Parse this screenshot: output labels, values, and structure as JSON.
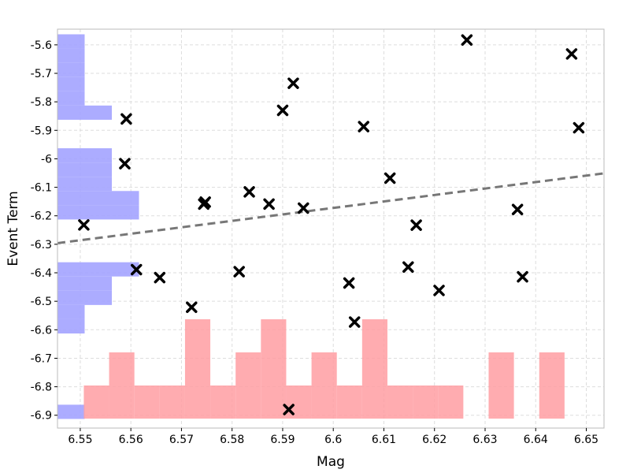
{
  "chart_data": {
    "type": "scatter",
    "title": "",
    "xlabel": "Mag",
    "ylabel": "Event Term",
    "xlim": [
      6.5455,
      6.6535
    ],
    "ylim": [
      -6.945,
      -5.545
    ],
    "x_ticks": [
      6.55,
      6.56,
      6.57,
      6.58,
      6.59,
      6.6,
      6.61,
      6.62,
      6.63,
      6.64,
      6.65
    ],
    "x_tick_labels": [
      "6.55",
      "6.56",
      "6.57",
      "6.58",
      "6.59",
      "6.6",
      "6.61",
      "6.62",
      "6.63",
      "6.64",
      "6.65"
    ],
    "y_ticks": [
      -5.6,
      -5.7,
      -5.8,
      -5.9,
      -6.0,
      -6.1,
      -6.2,
      -6.3,
      -6.4,
      -6.5,
      -6.6,
      -6.7,
      -6.8,
      -6.9
    ],
    "y_tick_labels": [
      "-5.6",
      "-5.7",
      "-5.8",
      "-5.9",
      "-6",
      "-6.1",
      "-6.2",
      "-6.3",
      "-6.4",
      "-6.5",
      "-6.6",
      "-6.7",
      "-6.8",
      "-6.9"
    ],
    "grid": true,
    "marker_color": "#000000",
    "points": [
      {
        "x": 6.5507,
        "y": -6.232
      },
      {
        "x": 6.5591,
        "y": -5.86
      },
      {
        "x": 6.5588,
        "y": -6.017
      },
      {
        "x": 6.5611,
        "y": -6.389
      },
      {
        "x": 6.5657,
        "y": -6.417
      },
      {
        "x": 6.572,
        "y": -6.521
      },
      {
        "x": 6.5744,
        "y": -6.159
      },
      {
        "x": 6.5747,
        "y": -6.152
      },
      {
        "x": 6.5814,
        "y": -6.396
      },
      {
        "x": 6.5834,
        "y": -6.116
      },
      {
        "x": 6.5873,
        "y": -6.159
      },
      {
        "x": 6.59,
        "y": -5.83
      },
      {
        "x": 6.5921,
        "y": -5.735
      },
      {
        "x": 6.5941,
        "y": -6.173
      },
      {
        "x": 6.5912,
        "y": -6.88
      },
      {
        "x": 6.6031,
        "y": -6.436
      },
      {
        "x": 6.6042,
        "y": -6.573
      },
      {
        "x": 6.606,
        "y": -5.887
      },
      {
        "x": 6.6112,
        "y": -6.068
      },
      {
        "x": 6.6148,
        "y": -6.38
      },
      {
        "x": 6.6164,
        "y": -6.233
      },
      {
        "x": 6.6209,
        "y": -6.462
      },
      {
        "x": 6.6264,
        "y": -5.583
      },
      {
        "x": 6.6364,
        "y": -6.178
      },
      {
        "x": 6.6374,
        "y": -6.414
      },
      {
        "x": 6.6471,
        "y": -5.632
      },
      {
        "x": 6.6485,
        "y": -5.891
      }
    ],
    "trend_line": {
      "x": [
        6.5455,
        6.6535
      ],
      "y": [
        -6.296,
        -6.051
      ],
      "color": "#777777",
      "style": "dashed"
    },
    "x_histogram": {
      "color": "#ff9da2",
      "bin_edges": [
        6.5507,
        6.5557,
        6.5607,
        6.5657,
        6.5707,
        6.5757,
        6.5807,
        6.5857,
        6.5907,
        6.5957,
        6.6007,
        6.6057,
        6.6107,
        6.6157,
        6.6207,
        6.6257,
        6.6307,
        6.6357,
        6.6407,
        6.6457,
        6.6507
      ],
      "counts": [
        1,
        2,
        1,
        1,
        3,
        1,
        2,
        3,
        1,
        2,
        1,
        3,
        1,
        1,
        1,
        0,
        2,
        0,
        2,
        0
      ]
    },
    "y_histogram": {
      "color": "#a3a3ff",
      "bin_edges": [
        -6.913,
        -6.863,
        -6.813,
        -6.763,
        -6.713,
        -6.663,
        -6.613,
        -6.563,
        -6.513,
        -6.463,
        -6.413,
        -6.363,
        -6.313,
        -6.263,
        -6.213,
        -6.163,
        -6.113,
        -6.063,
        -6.013,
        -5.963,
        -5.913,
        -5.863,
        -5.813,
        -5.763,
        -5.713,
        -5.663,
        -5.613,
        -5.563
      ],
      "counts": [
        1,
        0,
        0,
        0,
        0,
        0,
        1,
        1,
        2,
        2,
        3,
        0,
        0,
        0,
        3,
        3,
        2,
        2,
        2,
        0,
        0,
        2,
        1,
        1,
        1,
        1,
        1
      ]
    }
  }
}
